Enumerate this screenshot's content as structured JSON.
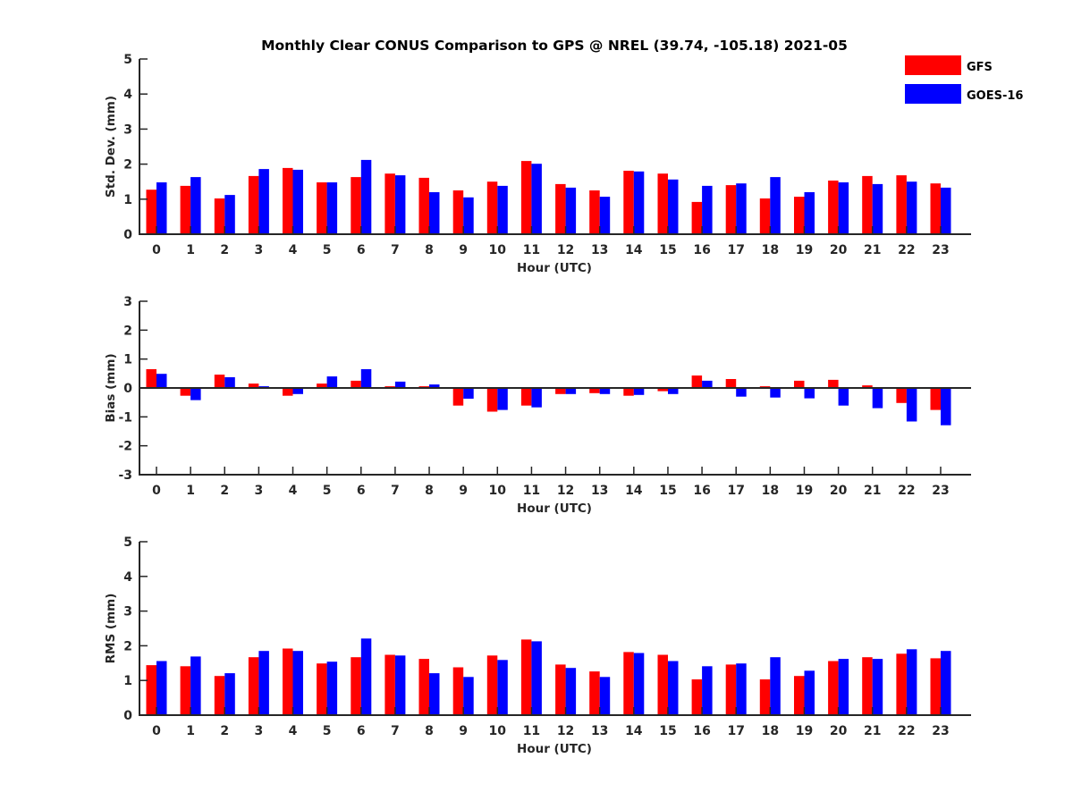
{
  "chart_data": {
    "type": "bar",
    "title": "Monthly Clear CONUS Comparison to GPS @ NREL (39.74, -105.18) 2021-05",
    "legend": {
      "placement": "top-right",
      "entries": [
        {
          "name": "GFS",
          "color": "#ff0000"
        },
        {
          "name": "GOES-16",
          "color": "#0000ff"
        }
      ]
    },
    "categories": [
      "0",
      "1",
      "2",
      "3",
      "4",
      "5",
      "6",
      "7",
      "8",
      "9",
      "10",
      "11",
      "12",
      "13",
      "14",
      "15",
      "16",
      "17",
      "18",
      "19",
      "20",
      "21",
      "22",
      "23"
    ],
    "panels": [
      {
        "id": "std",
        "ylabel": "Std. Dev. (mm)",
        "xlabel": "Hour (UTC)",
        "ylim": [
          0,
          5
        ],
        "yticks": [
          0,
          1,
          2,
          3,
          4,
          5
        ],
        "series": [
          {
            "name": "GFS",
            "color": "#ff0000",
            "values": [
              1.27,
              1.38,
              1.02,
              1.66,
              1.89,
              1.48,
              1.63,
              1.73,
              1.61,
              1.25,
              1.5,
              2.09,
              1.43,
              1.25,
              1.81,
              1.73,
              0.92,
              1.4,
              1.02,
              1.07,
              1.53,
              1.66,
              1.68,
              1.45
            ]
          },
          {
            "name": "GOES-16",
            "color": "#0000ff",
            "values": [
              1.48,
              1.63,
              1.12,
              1.86,
              1.84,
              1.48,
              2.12,
              1.68,
              1.2,
              1.05,
              1.38,
              2.01,
              1.33,
              1.07,
              1.79,
              1.56,
              1.38,
              1.45,
              1.63,
              1.2,
              1.48,
              1.43,
              1.5,
              1.33
            ]
          }
        ]
      },
      {
        "id": "bias",
        "ylabel": "Bias (mm)",
        "xlabel": "Hour (UTC)",
        "ylim": [
          -3,
          3
        ],
        "yticks": [
          -3,
          -2,
          -1,
          0,
          1,
          2,
          3
        ],
        "zero_line": true,
        "series": [
          {
            "name": "GFS",
            "color": "#ff0000",
            "values": [
              0.65,
              -0.27,
              0.46,
              0.15,
              -0.27,
              0.15,
              0.25,
              0.06,
              0.06,
              -0.61,
              -0.82,
              -0.61,
              -0.21,
              -0.18,
              -0.27,
              -0.11,
              0.43,
              0.31,
              0.06,
              0.25,
              0.28,
              0.09,
              -0.52,
              -0.76
            ]
          },
          {
            "name": "GOES-16",
            "color": "#0000ff",
            "values": [
              0.49,
              -0.42,
              0.37,
              0.06,
              -0.21,
              0.4,
              0.65,
              0.22,
              0.12,
              -0.37,
              -0.76,
              -0.67,
              -0.21,
              -0.21,
              -0.24,
              -0.21,
              0.25,
              -0.3,
              -0.33,
              -0.36,
              -0.61,
              -0.7,
              -1.16,
              -1.29
            ]
          }
        ]
      },
      {
        "id": "rms",
        "ylabel": "RMS (mm)",
        "xlabel": "Hour (UTC)",
        "ylim": [
          0,
          5
        ],
        "yticks": [
          0,
          1,
          2,
          3,
          4,
          5
        ],
        "series": [
          {
            "name": "GFS",
            "color": "#ff0000",
            "values": [
              1.44,
              1.41,
              1.13,
              1.67,
              1.92,
              1.49,
              1.67,
              1.74,
              1.62,
              1.38,
              1.72,
              2.18,
              1.46,
              1.26,
              1.82,
              1.74,
              1.03,
              1.46,
              1.03,
              1.13,
              1.56,
              1.67,
              1.77,
              1.64
            ]
          },
          {
            "name": "GOES-16",
            "color": "#0000ff",
            "values": [
              1.56,
              1.69,
              1.21,
              1.85,
              1.85,
              1.54,
              2.21,
              1.72,
              1.21,
              1.1,
              1.59,
              2.13,
              1.36,
              1.1,
              1.79,
              1.56,
              1.41,
              1.49,
              1.67,
              1.28,
              1.62,
              1.62,
              1.9,
              1.85
            ]
          }
        ]
      }
    ]
  }
}
